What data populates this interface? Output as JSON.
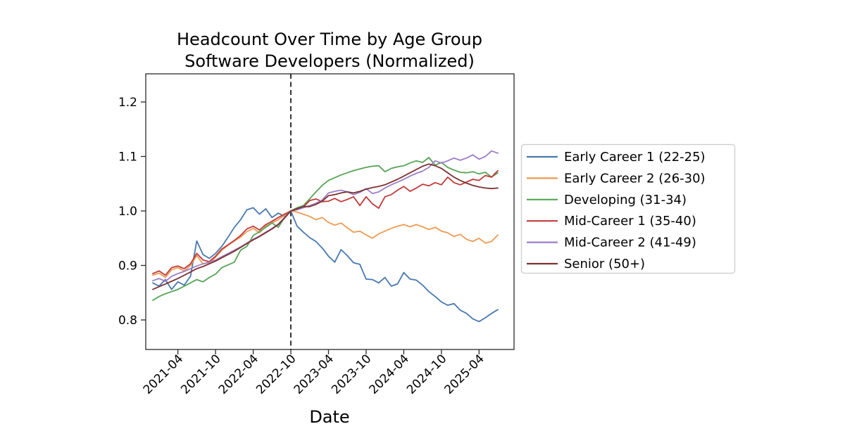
{
  "figure": {
    "background": "#ffffff"
  },
  "chart_data": {
    "type": "line",
    "title_line1": "Headcount Over Time by Age Group",
    "title_line2": "Software Developers (Normalized)",
    "xlabel": "Date",
    "ylabel": "",
    "grid": false,
    "legend_position": "right-outside",
    "ylim": [
      0.746,
      1.252
    ],
    "ytick_values": [
      0.8,
      0.9,
      1.0,
      1.1,
      1.2
    ],
    "ytick_labels": [
      "0.8",
      "0.9",
      "1.0",
      "1.1",
      "1.2"
    ],
    "xtick_labels": [
      "2021-04",
      "2021-10",
      "2022-04",
      "2022-10",
      "2023-04",
      "2023-10",
      "2024-04",
      "2024-10",
      "2025-04"
    ],
    "xtick_indices": [
      4,
      10,
      16,
      22,
      28,
      34,
      40,
      46,
      52
    ],
    "normalization_line_index": 22,
    "normalization_line_style": "dashed-black-vertical",
    "x": [
      "2020-12",
      "2021-01",
      "2021-02",
      "2021-03",
      "2021-04",
      "2021-05",
      "2021-06",
      "2021-07",
      "2021-08",
      "2021-09",
      "2021-10",
      "2021-11",
      "2021-12",
      "2022-01",
      "2022-02",
      "2022-03",
      "2022-04",
      "2022-05",
      "2022-06",
      "2022-07",
      "2022-08",
      "2022-09",
      "2022-10",
      "2022-11",
      "2022-12",
      "2023-01",
      "2023-02",
      "2023-03",
      "2023-04",
      "2023-05",
      "2023-06",
      "2023-07",
      "2023-08",
      "2023-09",
      "2023-10",
      "2023-11",
      "2023-12",
      "2024-01",
      "2024-02",
      "2024-03",
      "2024-04",
      "2024-05",
      "2024-06",
      "2024-07",
      "2024-08",
      "2024-09",
      "2024-10",
      "2024-11",
      "2024-12",
      "2025-01",
      "2025-02",
      "2025-03",
      "2025-04",
      "2025-05",
      "2025-06",
      "2025-07"
    ],
    "series": [
      {
        "name": "Early Career 1 (22-25)",
        "color": "#4878b0",
        "values": [
          0.868,
          0.862,
          0.874,
          0.856,
          0.87,
          0.864,
          0.88,
          0.945,
          0.92,
          0.913,
          0.922,
          0.935,
          0.952,
          0.97,
          0.984,
          1.002,
          1.006,
          0.994,
          1.004,
          0.988,
          0.996,
          0.99,
          1.0,
          0.972,
          0.961,
          0.951,
          0.944,
          0.932,
          0.917,
          0.906,
          0.929,
          0.918,
          0.905,
          0.902,
          0.875,
          0.874,
          0.868,
          0.878,
          0.862,
          0.866,
          0.887,
          0.875,
          0.873,
          0.864,
          0.852,
          0.843,
          0.833,
          0.827,
          0.83,
          0.818,
          0.812,
          0.802,
          0.797,
          0.804,
          0.812,
          0.819
        ]
      },
      {
        "name": "Early Career 2 (26-30)",
        "color": "#ee9a52",
        "values": [
          0.882,
          0.886,
          0.878,
          0.892,
          0.896,
          0.89,
          0.9,
          0.918,
          0.903,
          0.905,
          0.915,
          0.928,
          0.937,
          0.945,
          0.952,
          0.962,
          0.968,
          0.96,
          0.972,
          0.978,
          0.984,
          0.992,
          1.0,
          0.998,
          0.994,
          0.99,
          0.984,
          0.988,
          0.979,
          0.974,
          0.978,
          0.969,
          0.961,
          0.963,
          0.956,
          0.95,
          0.958,
          0.963,
          0.968,
          0.972,
          0.975,
          0.971,
          0.975,
          0.971,
          0.966,
          0.97,
          0.963,
          0.96,
          0.953,
          0.957,
          0.948,
          0.944,
          0.95,
          0.941,
          0.944,
          0.956
        ]
      },
      {
        "name": "Developing (31-34)",
        "color": "#56a456",
        "values": [
          0.836,
          0.843,
          0.848,
          0.852,
          0.856,
          0.862,
          0.868,
          0.874,
          0.87,
          0.878,
          0.884,
          0.896,
          0.901,
          0.906,
          0.928,
          0.935,
          0.955,
          0.962,
          0.97,
          0.978,
          0.97,
          0.988,
          1.0,
          1.006,
          1.01,
          1.022,
          1.035,
          1.047,
          1.056,
          1.061,
          1.066,
          1.07,
          1.074,
          1.077,
          1.08,
          1.082,
          1.083,
          1.072,
          1.078,
          1.081,
          1.083,
          1.088,
          1.092,
          1.089,
          1.098,
          1.084,
          1.089,
          1.08,
          1.075,
          1.071,
          1.07,
          1.072,
          1.068,
          1.071,
          1.062,
          1.07
        ]
      },
      {
        "name": "Mid-Career 1 (35-40)",
        "color": "#c23939",
        "values": [
          0.885,
          0.89,
          0.882,
          0.896,
          0.899,
          0.894,
          0.903,
          0.922,
          0.91,
          0.907,
          0.917,
          0.93,
          0.938,
          0.946,
          0.955,
          0.967,
          0.972,
          0.965,
          0.975,
          0.981,
          0.988,
          0.994,
          1.0,
          1.004,
          1.007,
          1.019,
          1.022,
          1.017,
          1.018,
          1.023,
          1.017,
          1.021,
          1.026,
          1.01,
          1.026,
          1.013,
          1.005,
          1.026,
          1.03,
          1.038,
          1.045,
          1.036,
          1.042,
          1.049,
          1.046,
          1.052,
          1.048,
          1.062,
          1.052,
          1.048,
          1.053,
          1.058,
          1.056,
          1.065,
          1.062,
          1.074
        ]
      },
      {
        "name": "Mid-Career 2 (41-49)",
        "color": "#9b7ec8",
        "values": [
          0.872,
          0.876,
          0.871,
          0.88,
          0.885,
          0.889,
          0.894,
          0.899,
          0.903,
          0.906,
          0.91,
          0.916,
          0.922,
          0.928,
          0.934,
          0.941,
          0.948,
          0.954,
          0.961,
          0.968,
          0.976,
          0.988,
          1.0,
          1.002,
          1.006,
          1.01,
          1.014,
          1.02,
          1.033,
          1.036,
          1.038,
          1.035,
          1.03,
          1.034,
          1.041,
          1.032,
          1.035,
          1.042,
          1.048,
          1.053,
          1.058,
          1.064,
          1.069,
          1.073,
          1.08,
          1.092,
          1.088,
          1.092,
          1.097,
          1.093,
          1.097,
          1.103,
          1.095,
          1.1,
          1.11,
          1.106
        ]
      },
      {
        "name": "Senior (50+)",
        "color": "#7d3232",
        "values": [
          0.856,
          0.861,
          0.866,
          0.871,
          0.876,
          0.882,
          0.888,
          0.894,
          0.898,
          0.903,
          0.908,
          0.914,
          0.92,
          0.926,
          0.933,
          0.94,
          0.947,
          0.953,
          0.96,
          0.967,
          0.975,
          0.987,
          1.0,
          1.004,
          1.008,
          1.008,
          1.012,
          1.018,
          1.028,
          1.03,
          1.033,
          1.035,
          1.033,
          1.036,
          1.04,
          1.043,
          1.045,
          1.048,
          1.053,
          1.058,
          1.064,
          1.07,
          1.076,
          1.082,
          1.086,
          1.083,
          1.078,
          1.07,
          1.062,
          1.056,
          1.051,
          1.047,
          1.044,
          1.042,
          1.041,
          1.042
        ]
      }
    ]
  }
}
